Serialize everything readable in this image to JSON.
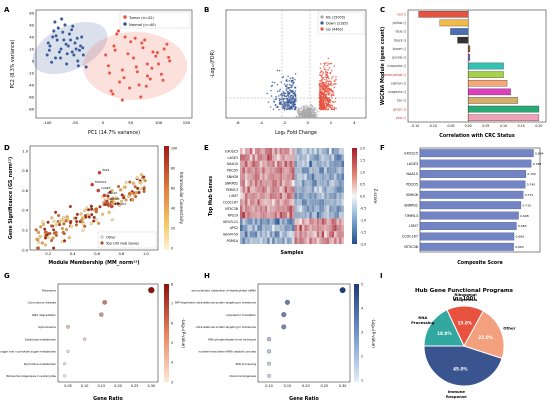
{
  "panels": {
    "A": {
      "letter": "A",
      "xlabel": "PC1 (14.7% variance)",
      "ylabel": "PC2 (8.3% variance)",
      "legend": [
        "Tumor (n=42)",
        "Normal (n=40)"
      ],
      "xticks": [
        "-100",
        "-50",
        "0",
        "50",
        "100",
        "150"
      ],
      "yticks": [
        "-80",
        "-60",
        "-40",
        "-20",
        "0",
        "20",
        "40",
        "60",
        "80"
      ]
    },
    "B": {
      "letter": "B",
      "xlabel": "Log₂ Fold Change",
      "ylabel": "-Log₁₀(FDR)",
      "legend": [
        "NS (15005)",
        "Down (2185)",
        "Up (4463)"
      ],
      "xticks": [
        "-6",
        "-4",
        "-2",
        "0",
        "2",
        "4"
      ]
    },
    "C": {
      "letter": "C",
      "xlabel": "Correlation with CRC Status",
      "ylabel": "WGCNA Module (gene count)",
      "xticks": [
        "-0.15",
        "-0.10",
        "-0.05",
        "0.00",
        "0.05",
        "0.10",
        "0.15",
        "0.20"
      ]
    },
    "D": {
      "letter": "D",
      "xlabel": "Module Membership (MM_norm¹²)",
      "ylabel": "Gene Significance (GS_norm¹²)",
      "legend": [
        "Other",
        "Top 100 Hub Genes"
      ],
      "colorbar_label": "Intramodular Connectivity",
      "xticks": [
        "0.2",
        "0.4",
        "0.6",
        "0.8",
        "1.0"
      ],
      "yticks": [
        "0.0",
        "0.2",
        "0.4",
        "0.6",
        "0.8",
        "1.0"
      ],
      "cbticks": [
        "100",
        "80",
        "60",
        "40",
        "20",
        "0"
      ],
      "gene_labels": [
        "PAK1",
        "EXOSC5",
        "LAGE3",
        "NAA10",
        "PDCD5",
        "SNRPD2"
      ]
    },
    "E": {
      "letter": "E",
      "xlabel": "Samples",
      "ylabel": "Top Hub Genes",
      "colorbar_label": "Z-score",
      "cbticks": [
        "2.0",
        "1.5",
        "1.0",
        "0.5",
        "0.0",
        "-0.5",
        "-1.0",
        "-1.5",
        "-2.0"
      ],
      "rows": [
        "EXOSC5",
        "LAGE3",
        "NAA10",
        "PDCD5",
        "SNHG6",
        "SNRPD2",
        "TIMM13",
        "LSM7",
        "CCDC167",
        "NT5C3B",
        "RPS19",
        "IGHV3-21",
        "APS2",
        "IGHV4-59",
        "PGM1A"
      ]
    },
    "F": {
      "letter": "F",
      "xlabel": "Composite Score"
    },
    "G": {
      "letter": "G",
      "xlabel": "Gene Ratio",
      "colorbar_label": "-Log₁₀(P-value)",
      "cbticks": [
        "8",
        "7",
        "6",
        "5",
        "4",
        "3"
      ],
      "xticks": [
        "0.05",
        "0.10",
        "0.15",
        "0.20",
        "0.25",
        "0.30"
      ]
    },
    "H": {
      "letter": "H",
      "xlabel": "Gene Ratio",
      "colorbar_label": "-Log₁₀(P-value)",
      "cbticks": [
        "5",
        "4",
        "3",
        "2",
        "1"
      ],
      "xticks": [
        "0.10",
        "0.15",
        "0.20",
        "0.25",
        "0.30"
      ]
    },
    "I": {
      "letter": "I",
      "title": "Hub Gene Functional Programs",
      "subtitle": "(n=100)"
    }
  },
  "colors": {
    "tumor": "#e8533f",
    "normal": "#3a5a98",
    "ns": "#aaaaaa",
    "bar_f": "#7284c4"
  },
  "chart_data": [
    {
      "panel": "A",
      "type": "scatter",
      "xlim": [
        -120,
        160
      ],
      "ylim": [
        -95,
        85
      ],
      "series": [
        {
          "name": "Tumor (n=42)",
          "color": "#e8533f",
          "x": [
            5,
            12,
            20,
            30,
            40,
            55,
            60,
            70,
            80,
            90,
            100,
            110,
            120,
            15,
            25,
            35,
            45,
            65,
            75,
            85,
            95,
            105,
            115,
            10,
            22,
            38,
            50,
            62,
            72,
            88,
            98,
            108,
            118,
            28,
            48,
            58,
            78,
            68,
            42,
            18,
            35,
            80
          ],
          "y": [
            10,
            -20,
            25,
            -35,
            40,
            5,
            -10,
            30,
            -25,
            15,
            -5,
            20,
            0,
            -50,
            45,
            -15,
            12,
            -40,
            35,
            -30,
            8,
            -22,
            28,
            -8,
            18,
            -28,
            32,
            -18,
            22,
            -12,
            14,
            -32,
            6,
            50,
            -45,
            38,
            -42,
            -60,
            60,
            -55,
            -65,
            -5
          ]
        },
        {
          "name": "Normal (n=40)",
          "color": "#3a5a98",
          "x": [
            -100,
            -95,
            -90,
            -85,
            -80,
            -75,
            -70,
            -65,
            -60,
            -55,
            -50,
            -45,
            -40,
            -35,
            -30,
            -98,
            -88,
            -78,
            -68,
            -58,
            -48,
            -38,
            -92,
            -82,
            -72,
            -62,
            -52,
            -42,
            -86,
            -76,
            -66,
            -56,
            -46,
            -36,
            -96,
            -84,
            -74,
            -64,
            -54,
            -44
          ],
          "y": [
            10,
            25,
            40,
            5,
            55,
            20,
            35,
            -5,
            45,
            15,
            30,
            0,
            25,
            10,
            -10,
            30,
            50,
            15,
            60,
            35,
            20,
            40,
            -2,
            35,
            48,
            25,
            10,
            18,
            65,
            5,
            28,
            52,
            38,
            22,
            18,
            42,
            70,
            12,
            58,
            -8
          ]
        }
      ]
    },
    {
      "panel": "B",
      "type": "scatter",
      "xlim": [
        -7,
        5
      ],
      "ylim": [
        0,
        20
      ],
      "series": [
        {
          "name": "NS (15005)",
          "count": 15005
        },
        {
          "name": "Down (2185)",
          "count": 2185
        },
        {
          "name": "Up (4463)",
          "count": 4463
        }
      ]
    },
    {
      "panel": "C",
      "type": "bar",
      "categories": [
        "red ()",
        "yellow ()",
        "blue ()",
        "black ()",
        "brown ()",
        "purple ()",
        "turquoise ()",
        "greenyellow ()",
        "salmon ()",
        "magenta ()",
        "tan ()",
        "green ()",
        "pink ()"
      ],
      "values": [
        -0.14,
        -0.08,
        -0.05,
        -0.03,
        0.005,
        0.005,
        0.1,
        0.1,
        0.11,
        0.12,
        0.14,
        0.2,
        0.2
      ],
      "colors": [
        "#e8533f",
        "#f0b94a",
        "#4a6fb5",
        "#333333",
        "#a0522d",
        "#8e6cbf",
        "#33c1b2",
        "#a8d14a",
        "#f3a87a",
        "#e040c0",
        "#d6b06a",
        "#2aa876",
        "#f0a0b8"
      ],
      "xlim": [
        -0.17,
        0.22
      ]
    },
    {
      "panel": "D",
      "type": "scatter",
      "xlim": [
        0.05,
        1.1
      ],
      "ylim": [
        0,
        1.05
      ]
    },
    {
      "panel": "E",
      "type": "heatmap"
    },
    {
      "panel": "F",
      "type": "bar",
      "categories": [
        "EXOSC5",
        "LAGE3",
        "NAA10",
        "PDCD5",
        "SNHG6",
        "SNRPD2",
        "TIMM13",
        "LSM7",
        "CCDC167",
        "NT5C3B"
      ],
      "values": [
        0.804,
        0.788,
        0.75,
        0.745,
        0.731,
        0.715,
        0.698,
        0.683,
        0.666,
        0.663
      ],
      "labels": [
        "0.804",
        "0.788",
        "0.750",
        "0.745",
        "0.731",
        "0.715",
        "0.698",
        "0.683",
        "0.666",
        "0.663"
      ],
      "xlim": [
        0,
        0.85
      ]
    },
    {
      "panel": "G",
      "type": "scatter",
      "categories": [
        "Ribosome",
        "Coronavirus disease",
        "RNA degradation",
        "Spliceosome",
        "Galactose metabolism",
        "Amino sugar and nucleotide sugar metabolism",
        "Pyrimidine metabolism",
        "Ribosome biogenesis in eukaryotes"
      ],
      "values": [
        0.3,
        0.16,
        0.15,
        0.05,
        0.1,
        0.05,
        0.04,
        0.04
      ],
      "color_values": [
        8,
        5.5,
        5,
        4,
        3.5,
        3.2,
        3.1,
        3.0
      ],
      "xlim": [
        0.02,
        0.32
      ]
    },
    {
      "panel": "H",
      "type": "scatter",
      "categories": [
        "exonucleolytic catabolism of deadenylated mRNA",
        "SRP-dependent cotranslational protein targeting to membrane",
        "cytoplasmic translation",
        "cotranslational protein targeting to membrane",
        "RNA phosphodiester bond hydrolysis",
        "nuclear-transcribed mRNA catabolic process",
        "RNA processing",
        "ribosome biogenesis"
      ],
      "values": [
        0.3,
        0.15,
        0.14,
        0.14,
        0.1,
        0.1,
        0.1,
        0.1
      ],
      "color_values": [
        5,
        3.5,
        3.5,
        3.3,
        2.0,
        1.8,
        1.6,
        1.4
      ],
      "xlim": [
        0.07,
        0.32
      ]
    },
    {
      "panel": "I",
      "type": "pie",
      "categories": [
        "Immune Response",
        "RNA Processing",
        "Ribosomal Biogenesis",
        "Other"
      ],
      "values": [
        45.0,
        18.0,
        15.0,
        22.0
      ],
      "labels": [
        "45.0%",
        "18.0%",
        "15.0%",
        "22.0%"
      ],
      "colors": [
        "#3a5490",
        "#33a8a0",
        "#e8533f",
        "#f2a07e"
      ]
    }
  ]
}
